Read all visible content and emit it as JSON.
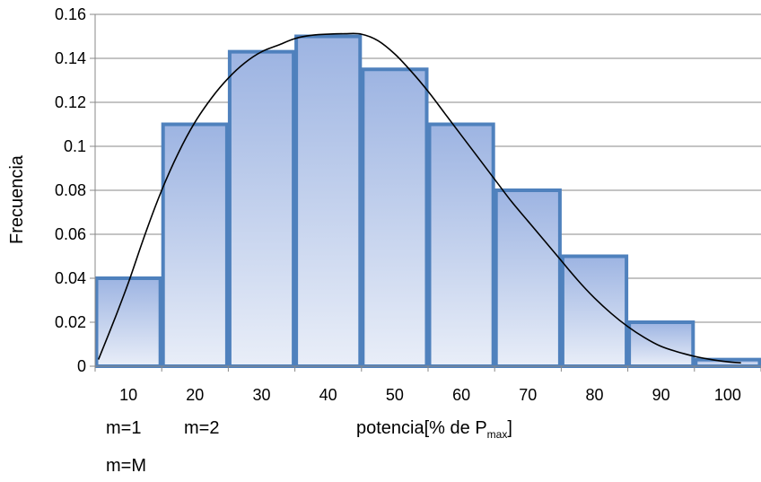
{
  "chart_data": {
    "type": "bar",
    "categories": [
      "10",
      "20",
      "30",
      "40",
      "50",
      "60",
      "70",
      "80",
      "90",
      "100"
    ],
    "values": [
      0.04,
      0.11,
      0.143,
      0.15,
      0.135,
      0.11,
      0.08,
      0.05,
      0.02,
      0.003
    ],
    "yticks": [
      "0",
      "0.02",
      "0.04",
      "0.06",
      "0.08",
      "0.1",
      "0.12",
      "0.14",
      "0.16"
    ],
    "ylim": [
      0,
      0.16
    ],
    "ylabel": "Frecuencia",
    "xlabel": "potencia[% de",
    "xlabel_symbol": "P",
    "xlabel_sub": "max",
    "xlabel_close": "]",
    "grid": true,
    "curve": {
      "x": [
        5.5,
        8,
        10,
        12.5,
        15,
        17.5,
        20,
        22.5,
        25,
        27.5,
        30,
        32.5,
        35,
        37.5,
        40,
        42.5,
        45,
        47.5,
        50,
        52.5,
        55,
        57.5,
        60,
        62.5,
        65,
        67.5,
        70,
        72.5,
        75,
        77.5,
        80,
        82.5,
        85,
        87.5,
        90,
        92.5,
        95,
        97.5,
        100,
        102
      ],
      "y": [
        0.003,
        0.022,
        0.038,
        0.06,
        0.08,
        0.097,
        0.111,
        0.122,
        0.131,
        0.138,
        0.143,
        0.146,
        0.149,
        0.1505,
        0.151,
        0.1512,
        0.151,
        0.148,
        0.142,
        0.134,
        0.125,
        0.115,
        0.105,
        0.095,
        0.085,
        0.075,
        0.066,
        0.057,
        0.048,
        0.039,
        0.031,
        0.024,
        0.018,
        0.013,
        0.009,
        0.0065,
        0.0045,
        0.003,
        0.002,
        0.0015
      ]
    },
    "colors": {
      "bar_top": "#9db4e2",
      "bar_bottom": "#e9eef8",
      "bar_stroke": "#4f81bd",
      "grid": "#888888",
      "curve": "#000000"
    }
  },
  "annotations": {
    "m1": "m=1",
    "m2": "m=2",
    "mM": "m=M"
  }
}
